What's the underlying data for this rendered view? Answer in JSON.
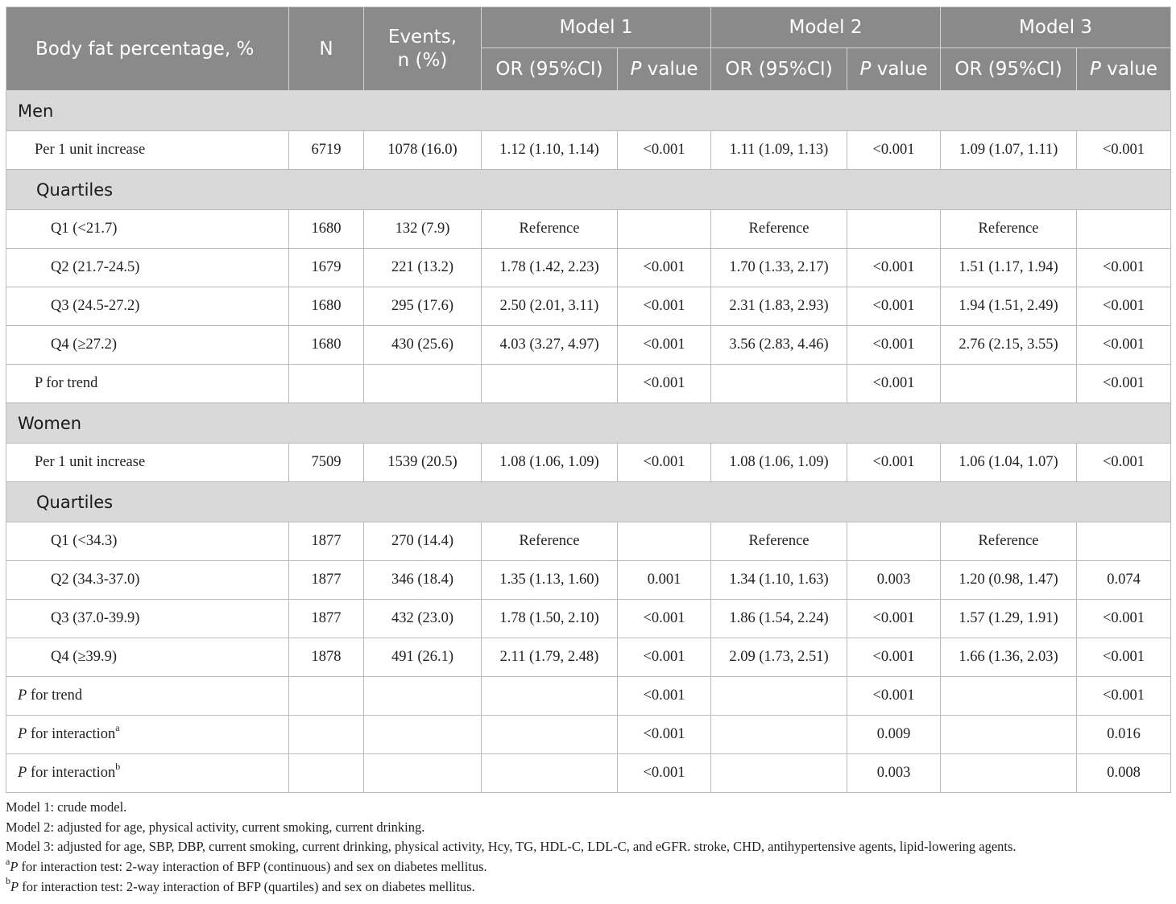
{
  "header": {
    "col_label": "Body fat percentage, %",
    "col_n": "N",
    "col_events_line1": "Events,",
    "col_events_line2": "n (%)",
    "models": [
      "Model 1",
      "Model 2",
      "Model 3"
    ],
    "or_label": "OR (95%CI)",
    "p_label_italic": "P",
    "p_label_rest": " value"
  },
  "men": {
    "section_label": "Men",
    "per_unit": {
      "label": "Per 1 unit increase",
      "n": "6719",
      "events": "1078 (16.0)",
      "m1_or": "1.12 (1.10, 1.14)",
      "m1_p": "<0.001",
      "m2_or": "1.11 (1.09, 1.13)",
      "m2_p": "<0.001",
      "m3_or": "1.09 (1.07, 1.11)",
      "m3_p": "<0.001"
    },
    "quartiles_label": "Quartiles",
    "quartiles": [
      {
        "label": "Q1 (<21.7)",
        "n": "1680",
        "events": "132 (7.9)",
        "m1_or": "Reference",
        "m1_p": "",
        "m2_or": "Reference",
        "m2_p": "",
        "m3_or": "Reference",
        "m3_p": ""
      },
      {
        "label": "Q2 (21.7-24.5)",
        "n": "1679",
        "events": "221 (13.2)",
        "m1_or": "1.78 (1.42, 2.23)",
        "m1_p": "<0.001",
        "m2_or": "1.70 (1.33, 2.17)",
        "m2_p": "<0.001",
        "m3_or": "1.51 (1.17, 1.94)",
        "m3_p": "<0.001"
      },
      {
        "label": "Q3 (24.5-27.2)",
        "n": "1680",
        "events": "295 (17.6)",
        "m1_or": "2.50 (2.01, 3.11)",
        "m1_p": "<0.001",
        "m2_or": "2.31 (1.83, 2.93)",
        "m2_p": "<0.001",
        "m3_or": "1.94 (1.51, 2.49)",
        "m3_p": "<0.001"
      },
      {
        "label": "Q4 (≥27.2)",
        "n": "1680",
        "events": "430 (25.6)",
        "m1_or": "4.03 (3.27, 4.97)",
        "m1_p": "<0.001",
        "m2_or": "3.56 (2.83, 4.46)",
        "m2_p": "<0.001",
        "m3_or": "2.76 (2.15, 3.55)",
        "m3_p": "<0.001"
      }
    ],
    "trend": {
      "label": "P for trend",
      "m1_p": "<0.001",
      "m2_p": "<0.001",
      "m3_p": "<0.001"
    }
  },
  "women": {
    "section_label": "Women",
    "per_unit": {
      "label": "Per 1 unit increase",
      "n": "7509",
      "events": "1539 (20.5)",
      "m1_or": "1.08 (1.06, 1.09)",
      "m1_p": "<0.001",
      "m2_or": "1.08 (1.06, 1.09)",
      "m2_p": "<0.001",
      "m3_or": "1.06 (1.04, 1.07)",
      "m3_p": "<0.001"
    },
    "quartiles_label": "Quartiles",
    "quartiles": [
      {
        "label": "Q1 (<34.3)",
        "n": "1877",
        "events": "270 (14.4)",
        "m1_or": "Reference",
        "m1_p": "",
        "m2_or": "Reference",
        "m2_p": "",
        "m3_or": "Reference",
        "m3_p": ""
      },
      {
        "label": "Q2 (34.3-37.0)",
        "n": "1877",
        "events": "346 (18.4)",
        "m1_or": "1.35 (1.13, 1.60)",
        "m1_p": "0.001",
        "m2_or": "1.34 (1.10, 1.63)",
        "m2_p": "0.003",
        "m3_or": "1.20 (0.98, 1.47)",
        "m3_p": "0.074"
      },
      {
        "label": "Q3 (37.0-39.9)",
        "n": "1877",
        "events": "432 (23.0)",
        "m1_or": "1.78 (1.50, 2.10)",
        "m1_p": "<0.001",
        "m2_or": "1.86 (1.54, 2.24)",
        "m2_p": "<0.001",
        "m3_or": "1.57 (1.29, 1.91)",
        "m3_p": "<0.001"
      },
      {
        "label": "Q4 (≥39.9)",
        "n": "1878",
        "events": "491 (26.1)",
        "m1_or": "2.11 (1.79, 2.48)",
        "m1_p": "<0.001",
        "m2_or": "2.09 (1.73, 2.51)",
        "m2_p": "<0.001",
        "m3_or": "1.66 (1.36, 2.03)",
        "m3_p": "<0.001"
      }
    ]
  },
  "footer_rows": [
    {
      "label_italic": "P",
      "label_rest": " for trend",
      "sup": "",
      "m1_p": "<0.001",
      "m2_p": "<0.001",
      "m3_p": "<0.001"
    },
    {
      "label_italic": "P",
      "label_rest": " for interaction",
      "sup": "a",
      "m1_p": "<0.001",
      "m2_p": "0.009",
      "m3_p": "0.016"
    },
    {
      "label_italic": "P",
      "label_rest": " for interaction",
      "sup": "b",
      "m1_p": "<0.001",
      "m2_p": "0.003",
      "m3_p": "0.008"
    }
  ],
  "notes": {
    "model1": "Model 1: crude model.",
    "model2": "Model 2: adjusted for age, physical activity, current smoking, current drinking.",
    "model3": "Model 3: adjusted for age, SBP, DBP, current smoking, current drinking, physical activity, Hcy, TG, HDL-C, LDL-C, and eGFR. stroke, CHD, antihypertensive agents, lipid-lowering agents.",
    "note_a_sup": "a",
    "note_a_italic": "P",
    "note_a_rest": " for interaction test: 2-way interaction of BFP (continuous) and sex on diabetes mellitus.",
    "note_b_sup": "b",
    "note_b_italic": "P",
    "note_b_rest": " for interaction test: 2-way interaction of BFP (quartiles) and sex on diabetes mellitus."
  }
}
